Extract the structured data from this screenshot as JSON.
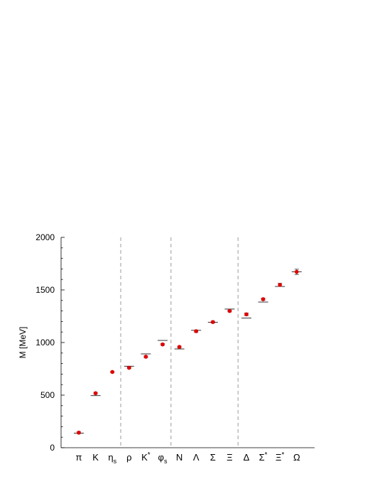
{
  "chart_data": {
    "type": "scatter",
    "title": "",
    "ylabel": "M [MeV]",
    "xlabel": "",
    "ylim": [
      0,
      2000
    ],
    "yticks": [
      "0",
      "500",
      "1000",
      "1500",
      "2000"
    ],
    "categories": [
      "π",
      "K",
      "η",
      "ρ",
      "K",
      "φ",
      "N",
      "Λ",
      "Σ",
      "Ξ",
      "Δ",
      "Σ",
      "Ξ",
      "Ω"
    ],
    "category_subscripts": [
      "",
      "",
      "s",
      "",
      "",
      "s",
      "",
      "",
      "",
      "",
      "",
      "",
      "",
      ""
    ],
    "category_superscripts": [
      "",
      "",
      "",
      "",
      "*",
      "",
      "",
      "",
      "",
      "",
      "",
      "*",
      "*",
      ""
    ],
    "group_separators_after": [
      2,
      5,
      9
    ],
    "reference_lines": [
      138,
      495,
      null,
      775,
      892,
      1020,
      939,
      1116,
      1193,
      1318,
      1232,
      1385,
      1533,
      1672
    ],
    "series": [
      {
        "values": [
          143,
          518,
          720,
          760,
          865,
          982,
          958,
          1108,
          1195,
          1300,
          1268,
          1412,
          1548,
          1672
        ],
        "errors": [
          8,
          8,
          6,
          8,
          8,
          8,
          8,
          10,
          8,
          8,
          12,
          10,
          15,
          25
        ],
        "color": "#e00000"
      }
    ],
    "colors": {
      "points": "#e00000",
      "axes": "#000000",
      "separator": "#999999",
      "reference": "#000000"
    }
  }
}
